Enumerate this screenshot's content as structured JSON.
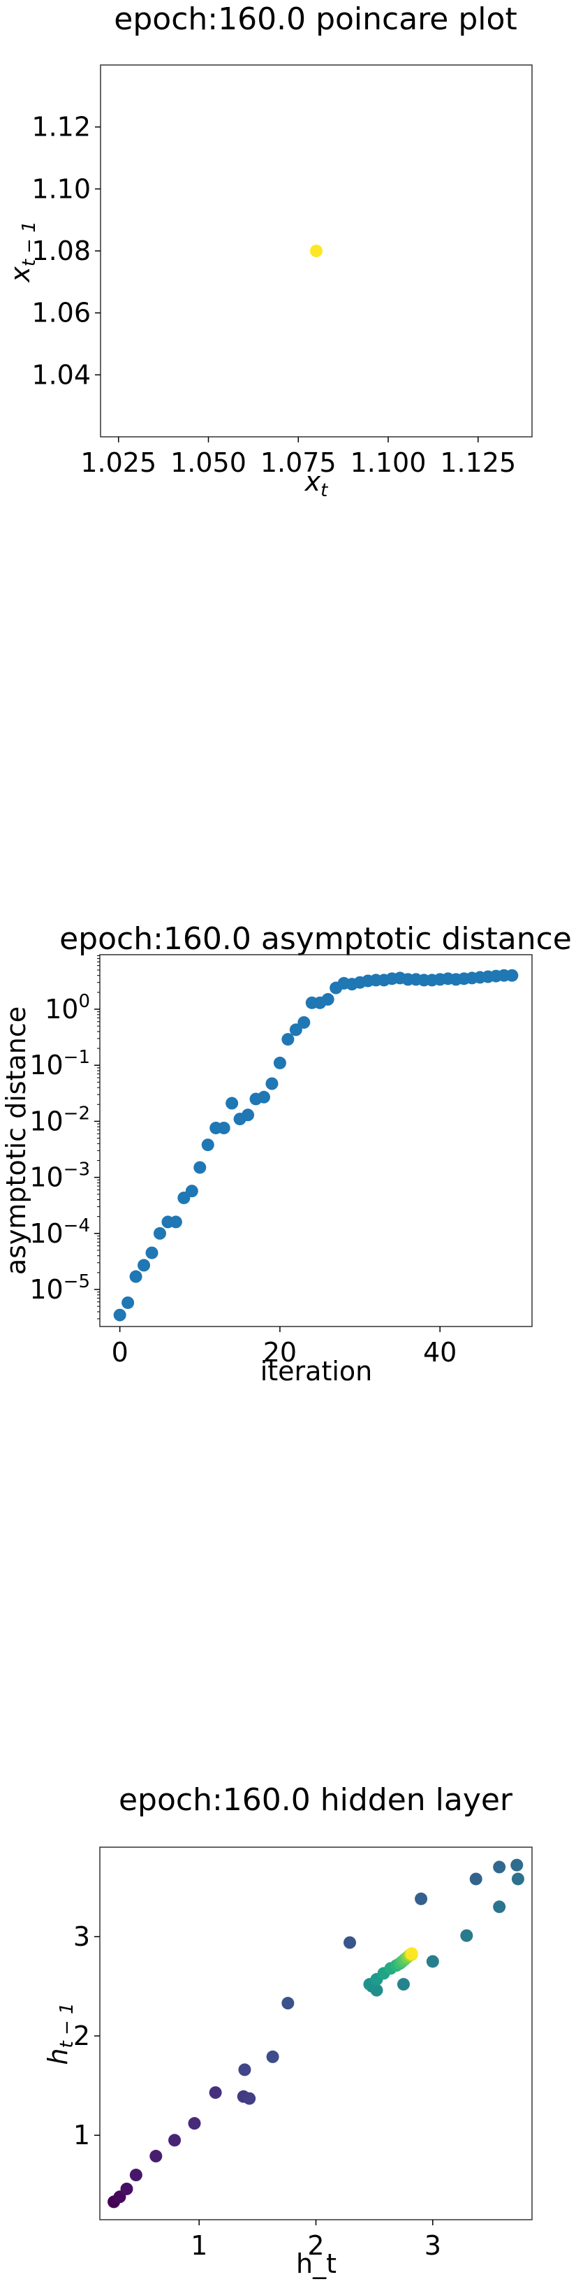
{
  "chart_data": [
    {
      "type": "scatter",
      "title": "epoch:160.0 poincare plot",
      "xlabel": "x_t",
      "ylabel": "x_{t-1}",
      "xlim": [
        1.02,
        1.14
      ],
      "ylim": [
        1.02,
        1.14
      ],
      "xticks": [
        "1.025",
        "1.050",
        "1.075",
        "1.100",
        "1.125"
      ],
      "yticks": [
        "1.04",
        "1.06",
        "1.08",
        "1.10",
        "1.12"
      ],
      "grid": false,
      "points": [
        {
          "x": 1.08,
          "y": 1.08,
          "color": "#fde725"
        }
      ]
    },
    {
      "type": "scatter",
      "title": "epoch:160.0 asymptotic distance",
      "xlabel": "iteration",
      "ylabel": "asymptotic distance",
      "yscale": "log",
      "xlim": [
        -2.5,
        51.5
      ],
      "xticks": [
        "0",
        "20",
        "40"
      ],
      "ytick_exponents": [
        -5,
        -4,
        -3,
        -2,
        -1,
        0
      ],
      "grid": false,
      "color": "#1f77b4",
      "x": [
        0,
        1,
        2,
        3,
        4,
        5,
        6,
        7,
        8,
        9,
        10,
        11,
        12,
        13,
        14,
        15,
        16,
        17,
        18,
        19,
        20,
        21,
        22,
        23,
        24,
        25,
        26,
        27,
        28,
        29,
        30,
        31,
        32,
        33,
        34,
        35,
        36,
        37,
        38,
        39,
        40,
        41,
        42,
        43,
        44,
        45,
        46,
        47,
        48,
        49
      ],
      "y": [
        3.5e-06,
        5.8e-06,
        1.7e-05,
        2.7e-05,
        4.5e-05,
        0.0001,
        0.00016,
        0.00016,
        0.00043,
        0.00057,
        0.0015,
        0.0038,
        0.0076,
        0.0076,
        0.021,
        0.011,
        0.013,
        0.025,
        0.027,
        0.047,
        0.11,
        0.29,
        0.43,
        0.58,
        1.3,
        1.3,
        1.5,
        2.4,
        2.9,
        2.8,
        3.0,
        3.2,
        3.3,
        3.3,
        3.5,
        3.6,
        3.4,
        3.4,
        3.3,
        3.3,
        3.4,
        3.5,
        3.4,
        3.5,
        3.6,
        3.7,
        3.8,
        3.9,
        4.0,
        4.0
      ]
    },
    {
      "type": "scatter",
      "title": "epoch:160.0 hidden layer",
      "xlabel": "h_t",
      "ylabel": "h_{t-1}",
      "xlim": [
        0.15,
        3.85
      ],
      "ylim": [
        0.15,
        3.9
      ],
      "xticks": [
        "1",
        "2",
        "3"
      ],
      "yticks": [
        "1",
        "2",
        "3"
      ],
      "grid": false,
      "colormap": "viridis",
      "points": [
        {
          "x": 0.27,
          "y": 0.33,
          "color": "#440154"
        },
        {
          "x": 0.32,
          "y": 0.38,
          "color": "#46085c"
        },
        {
          "x": 0.38,
          "y": 0.46,
          "color": "#471063"
        },
        {
          "x": 0.46,
          "y": 0.6,
          "color": "#481769"
        },
        {
          "x": 0.63,
          "y": 0.79,
          "color": "#481d6f"
        },
        {
          "x": 0.79,
          "y": 0.95,
          "color": "#482475"
        },
        {
          "x": 0.96,
          "y": 1.12,
          "color": "#472a7a"
        },
        {
          "x": 1.14,
          "y": 1.43,
          "color": "#46307e"
        },
        {
          "x": 1.38,
          "y": 1.39,
          "color": "#443983"
        },
        {
          "x": 1.43,
          "y": 1.37,
          "color": "#423f85"
        },
        {
          "x": 1.39,
          "y": 1.66,
          "color": "#404688"
        },
        {
          "x": 1.63,
          "y": 1.79,
          "color": "#3e4c8a"
        },
        {
          "x": 1.76,
          "y": 2.33,
          "color": "#3b528b"
        },
        {
          "x": 2.29,
          "y": 2.94,
          "color": "#39568c"
        },
        {
          "x": 2.9,
          "y": 3.38,
          "color": "#355f8d"
        },
        {
          "x": 3.37,
          "y": 3.58,
          "color": "#33638d"
        },
        {
          "x": 3.57,
          "y": 3.7,
          "color": "#31688e"
        },
        {
          "x": 3.72,
          "y": 3.72,
          "color": "#2f6c8e"
        },
        {
          "x": 3.73,
          "y": 3.58,
          "color": "#2d718e"
        },
        {
          "x": 3.57,
          "y": 3.3,
          "color": "#2b758e"
        },
        {
          "x": 3.29,
          "y": 3.01,
          "color": "#297a8e"
        },
        {
          "x": 3.0,
          "y": 2.75,
          "color": "#277f8e"
        },
        {
          "x": 2.75,
          "y": 2.52,
          "color": "#25838e"
        },
        {
          "x": 2.48,
          "y": 2.5,
          "color": "#23888e"
        },
        {
          "x": 2.52,
          "y": 2.46,
          "color": "#218e8d"
        },
        {
          "x": 2.46,
          "y": 2.52,
          "color": "#1f928c"
        },
        {
          "x": 2.52,
          "y": 2.57,
          "color": "#1e9b8a"
        },
        {
          "x": 2.58,
          "y": 2.63,
          "color": "#20a386"
        },
        {
          "x": 2.64,
          "y": 2.68,
          "color": "#25ab82"
        },
        {
          "x": 2.69,
          "y": 2.71,
          "color": "#2eb37c"
        },
        {
          "x": 2.72,
          "y": 2.73,
          "color": "#3bbb75"
        },
        {
          "x": 2.74,
          "y": 2.75,
          "color": "#4ac16d"
        },
        {
          "x": 2.76,
          "y": 2.77,
          "color": "#58c765"
        },
        {
          "x": 2.78,
          "y": 2.79,
          "color": "#75d054"
        },
        {
          "x": 2.8,
          "y": 2.81,
          "color": "#95d840"
        },
        {
          "x": 2.81,
          "y": 2.82,
          "color": "#b8de29"
        },
        {
          "x": 2.82,
          "y": 2.82,
          "color": "#dde318"
        },
        {
          "x": 2.82,
          "y": 2.83,
          "color": "#fde725"
        }
      ]
    }
  ]
}
